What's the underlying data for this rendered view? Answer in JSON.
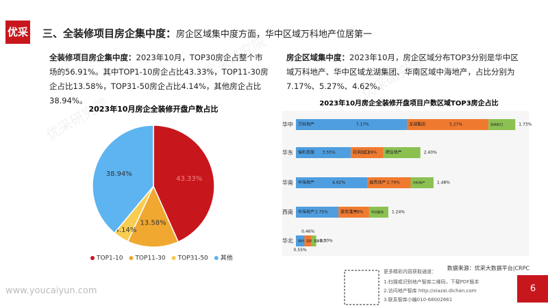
{
  "header": {
    "logo": "优采",
    "title_bold": "三、全装修项目房企集中度：",
    "title_rest": "房企区域集中度方面，华中区域万科地产位居第一"
  },
  "left_text": {
    "lead": "全装修项目房企集中度：",
    "body": "2023年10月，TOP30房企占整个市场的56.91%。其中TOP1-10房企占比43.33%，TOP11-30房企占比13.58%，TOP31-50房企占比4.14%，其他房企占比38.94%。"
  },
  "right_text": {
    "lead": "房企区域集中度：",
    "body": "2023年10月，房企区域分布TOP3分别是华中区域万科地产、华中区域龙湖集团、华南区域中海地产，占比分别为7.17%、5.27%、4.62%。"
  },
  "chart_data": [
    {
      "type": "pie",
      "title": "2023年10月房企全装修开盘户数占比",
      "categories": [
        "TOP1-10",
        "TOP11-30",
        "TOP31-50",
        "其他"
      ],
      "values": [
        43.33,
        13.58,
        4.14,
        38.94
      ],
      "value_labels": [
        "43.33%",
        "13.58%",
        "4.14%",
        "38.94%"
      ],
      "colors": [
        "#c8161d",
        "#f0a830",
        "#f8cc50",
        "#5db4f0"
      ]
    },
    {
      "type": "stacked-bar",
      "title": "2023年10月房企全装修开盘项目户数区域TOP3房企占比",
      "colors": [
        "#4f9ee0",
        "#f07a30",
        "#8cc152"
      ],
      "bars": [
        {
          "category": "华中",
          "segments": [
            {
              "name": "万科地产",
              "value": 7.17,
              "value_label": "7.17%"
            },
            {
              "name": "龙湖集团",
              "value": 5.27,
              "value_label": "5.27%"
            },
            {
              "name": "招商蛇口",
              "value": 1.73,
              "value_label": "1.73%"
            }
          ]
        },
        {
          "category": "华东",
          "segments": [
            {
              "name": "保利发展",
              "value": 3.55,
              "value_label": "3.55%"
            },
            {
              "name": "招商蛇口",
              "value": 2.09,
              "value_label": "2.09%"
            },
            {
              "name": "德信地产",
              "value": 2.4,
              "value_label": "2.40%"
            }
          ]
        },
        {
          "category": "华南",
          "segments": [
            {
              "name": "中海地产",
              "value": 4.62,
              "value_label": "4.62%"
            },
            {
              "name": "越秀地产",
              "value": 2.79,
              "value_label": "2.79%"
            },
            {
              "name": "万科地产",
              "value": 1.48,
              "value_label": "1.48%"
            }
          ]
        },
        {
          "category": "西南",
          "segments": [
            {
              "name": "中海地产",
              "value": 2.75,
              "value_label": "2.75%"
            },
            {
              "name": "建发房产",
              "value": 1.98,
              "value_label": "1.98%"
            },
            {
              "name": "华润置地",
              "value": 1.24,
              "value_label": "1.24%"
            }
          ]
        },
        {
          "category": "华北",
          "segments": [
            {
              "name": "保利发展",
              "value": 0.55,
              "value_label": "0.55%"
            },
            {
              "name": "招商蛇口",
              "value": 0.46,
              "value_label": "0.46%"
            },
            {
              "name": "北京建工",
              "value": 0.3,
              "value_label": "0.30%"
            }
          ]
        }
      ]
    }
  ],
  "source": "数据来源：优采大数据平台|CRPC",
  "footer": {
    "site": "www.youcaiyun.com",
    "page": "6",
    "qr_title": "更多精彩内容获取通道：",
    "qr_lines": [
      "1.扫描或识别地产智库二维码，下载PDF版本",
      "2.访问地产智库 http://xiazai.dichan.com",
      "3.联系智库小编010-68002661"
    ]
  },
  "watermark": "优采研究院"
}
